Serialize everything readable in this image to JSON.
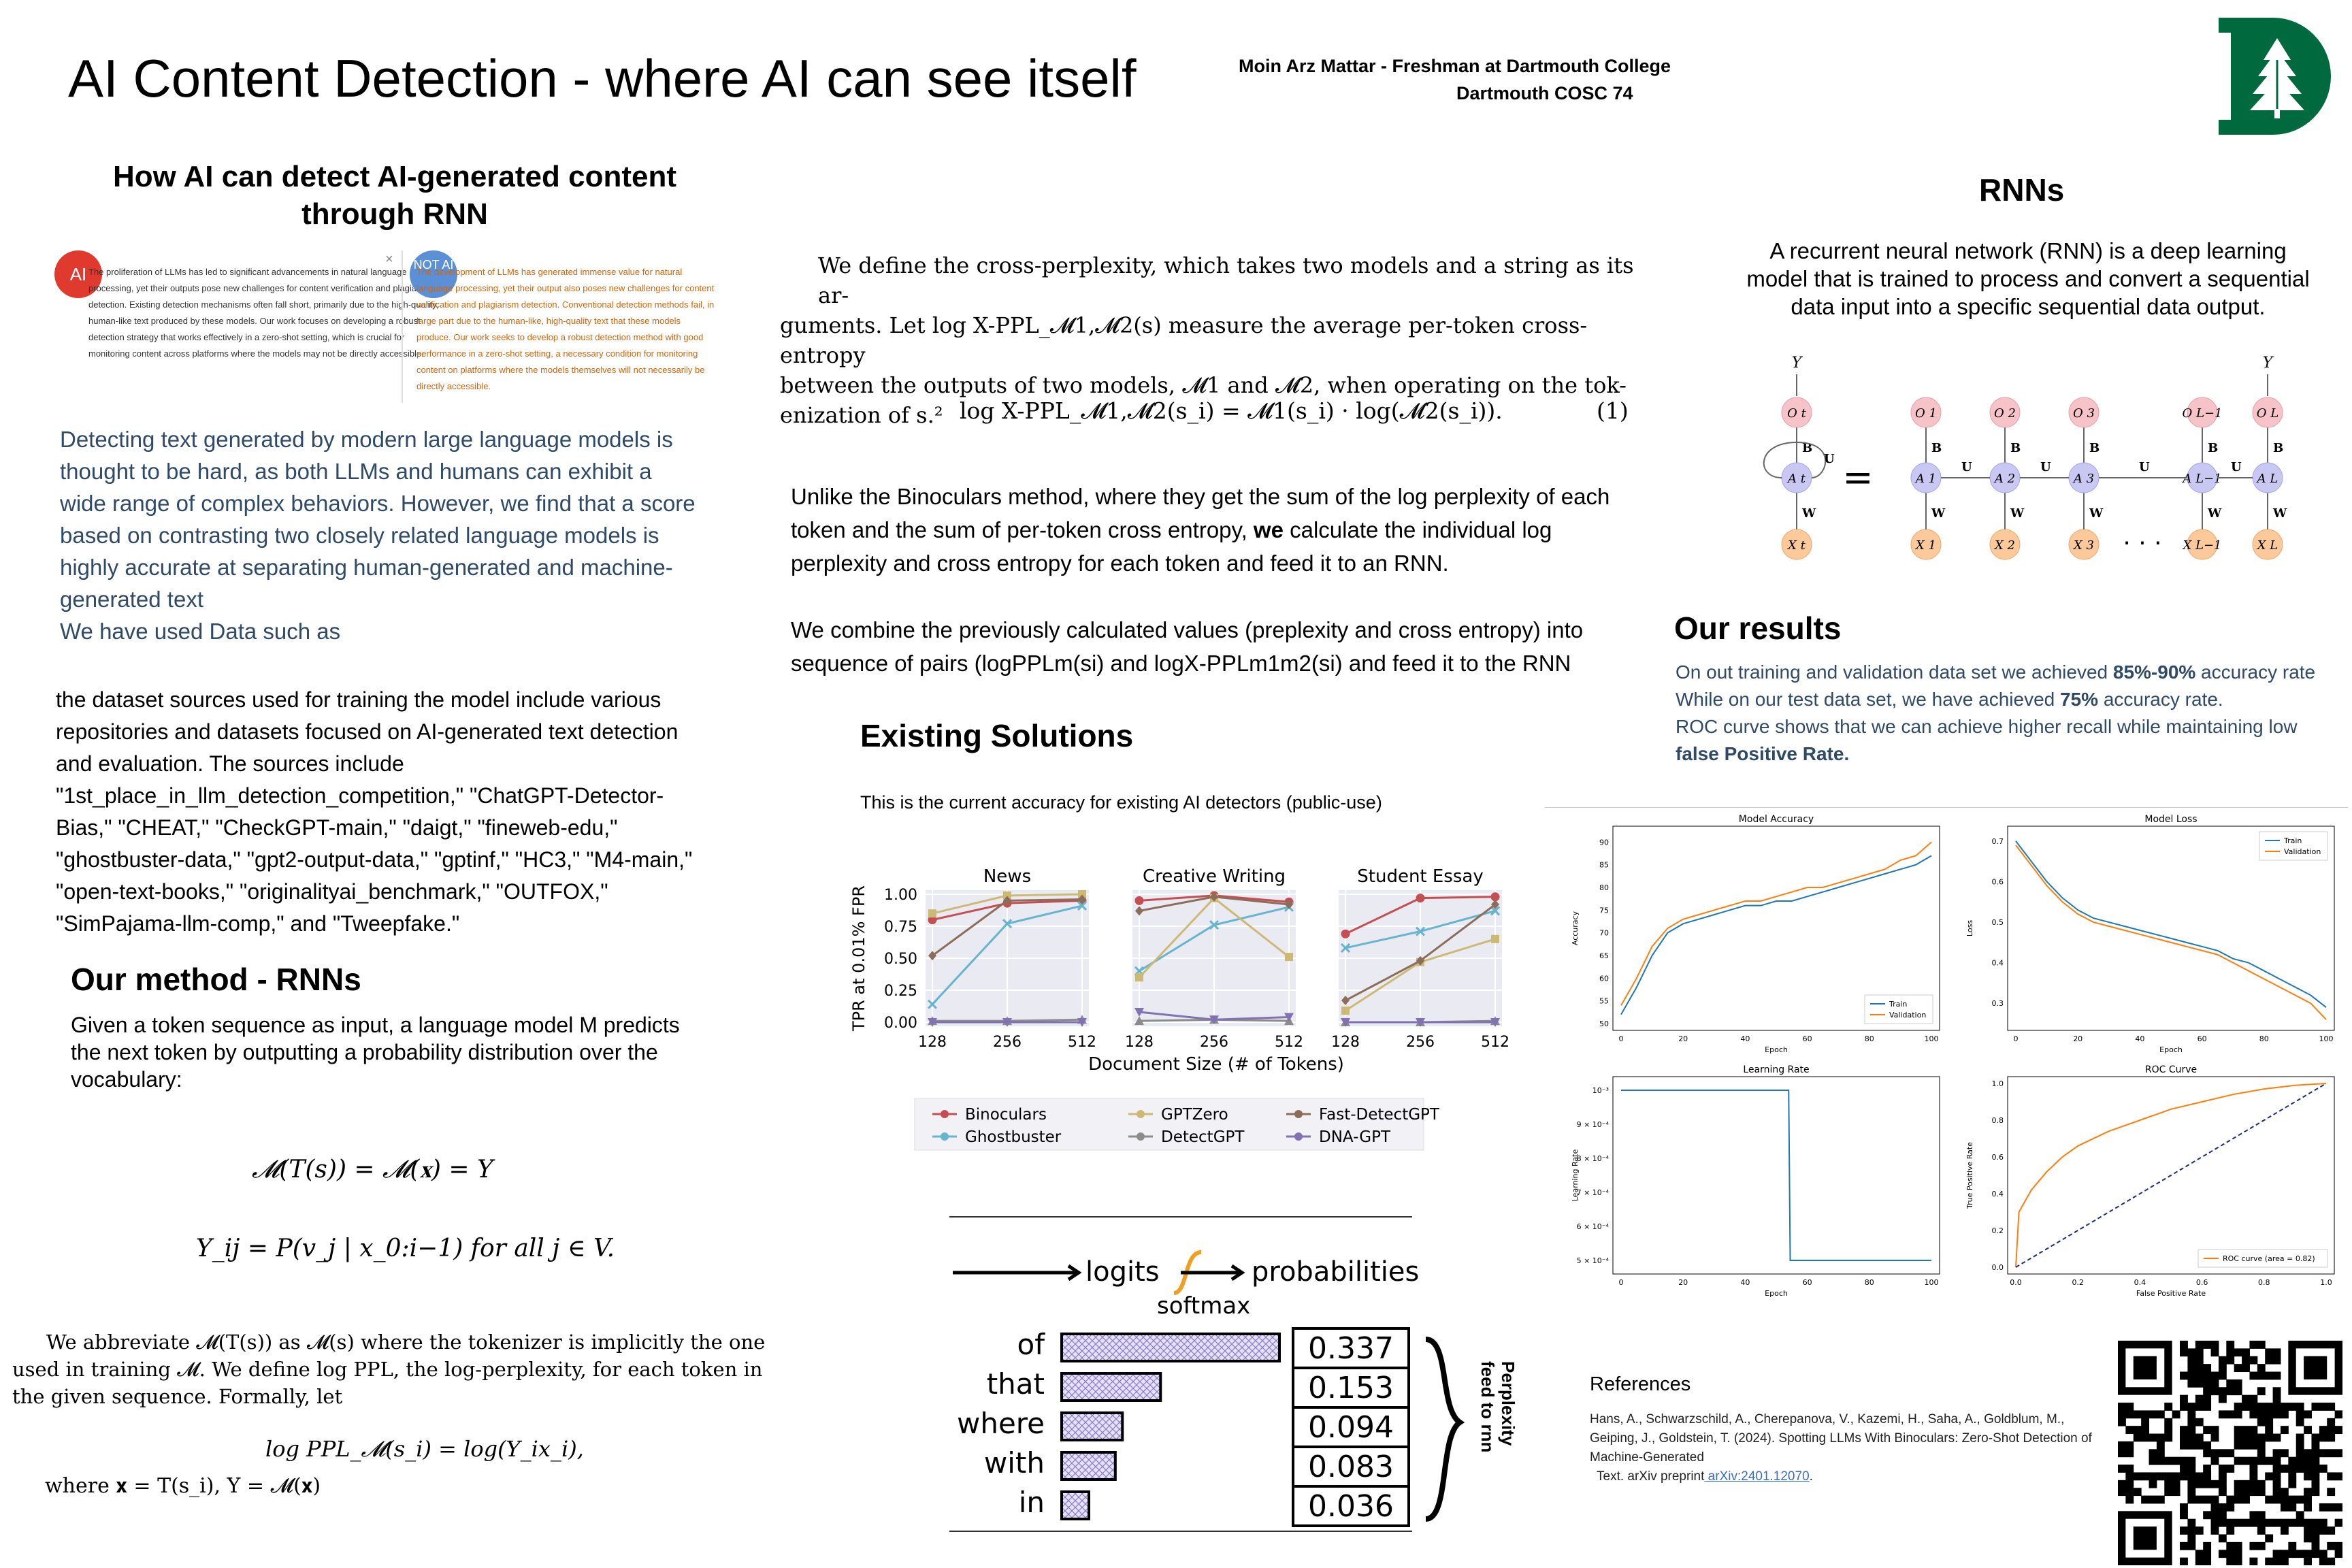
{
  "header": {
    "title": "AI Content Detection - where AI can see itself",
    "author": "Moin Arz Mattar - Freshman at Dartmouth College",
    "course": "Dartmouth COSC 74"
  },
  "left": {
    "heading": "How AI can detect AI-generated content through RNN",
    "sample": {
      "ai_badge": "AI",
      "not_ai_badge": "NOT AI",
      "close_glyph": "×",
      "ai_text": "The proliferation of LLMs has led to significant advancements in natural language processing, yet their outputs pose new challenges for content verification and plagiarism detection. Existing detection mechanisms often fall short, primarily due to the high-quality, human-like text produced by these models. Our work focuses on developing a robust detection strategy that works effectively in a zero-shot setting, which is crucial for monitoring content across platforms where the models may not be directly accessible.",
      "human_text": "The development of LLMs has generated immense value for natural language processing, yet their output also poses new challenges for content verification and plagiarism detection. Conventional detection methods fail, in large part due to the human-like, high-quality text that these models produce. Our work seeks to develop a robust detection method with good performance in a zero-shot setting, a necessary condition for monitoring content on platforms where the models themselves will not necessarily be directly accessible."
    },
    "intro_lines": [
      "Detecting text generated by modern large language models is",
      "thought to be hard, as both LLMs and humans can exhibit a",
      "wide range of complex behaviors. However, we find that a score",
      "based on contrasting two closely related language models is",
      "highly accurate at separating human-generated and machine-",
      "generated text",
      "We have used Data such as"
    ],
    "dataset_lines": [
      "the dataset sources used for training the model include various",
      "repositories and datasets focused on AI-generated text detection",
      "and evaluation. The sources include",
      "\"1st_place_in_llm_detection_competition,\" \"ChatGPT-Detector-",
      "Bias,\" \"CHEAT,\" \"CheckGPT-main,\" \"daigt,\" \"fineweb-edu,\"",
      "\"ghostbuster-data,\" \"gpt2-output-data,\" \"gptinf,\" \"HC3,\" \"M4-main,\"",
      "\"open-text-books,\" \"originalityai_benchmark,\" \"OUTFOX,\"",
      "\"SimPajama-llm-comp,\" and \"Tweepfake.\""
    ],
    "method_heading": "Our method - RNNs",
    "method_lines": [
      "Given a token sequence as input, a language model M predicts",
      "the next token by outputting a probability distribution over the",
      "vocabulary:"
    ],
    "eq1": "𝓜(T(s)) = 𝓜(𝐱) = Y",
    "eq2": "Y_ij = P(v_j | x_0:i−1) for all j ∈ V.",
    "abbrev_lines": [
      "We abbreviate 𝓜(T(s)) as 𝓜(s) where the tokenizer is implicitly the one",
      "used in training 𝓜. We define log PPL, the log-perplexity, for each token in",
      "the given sequence. Formally, let"
    ],
    "eq3": "log PPL_𝓜(s_i) = log(Y_ix_i),",
    "where_line": "where 𝐱 = T(s_i), Y = 𝓜(𝐱)"
  },
  "middle": {
    "def_lines": [
      "We define the cross-perplexity, which takes two models and a string as its ar-",
      "guments. Let log X-PPL_𝓜1,𝓜2(s) measure the average per-token cross-entropy",
      "between the outputs of two models, 𝓜1 and 𝓜2, when operating on the tok-",
      "enization of s.²"
    ],
    "eq_main": "log X-PPL_𝓜1,𝓜2(s_i) = 𝓜1(s_i) · log(𝓜2(s_i)).",
    "eq_number": "(1)",
    "binoculars_lines_a": "Unlike the Binoculars method, where they get the sum of the log perplexity of each",
    "binoculars_lines_b_pre": "token and the sum of per-token cross entropy, ",
    "binoculars_lines_b_bold": "we",
    "binoculars_lines_b_post": " calculate the individual log",
    "binoculars_lines_c": "perplexity and cross entropy for each token and feed it to an RNN.",
    "combine_lines": [
      "We combine the previously calculated values (preplexity and cross entropy) into",
      "sequence of pairs (logPPLm(si) and logX-PPLm1m2(si) and feed it to the RNN"
    ],
    "existing_heading": "Existing Solutions",
    "existing_caption": "This is the current accuracy for existing AI detectors (public-use)",
    "softmax": {
      "logits": "logits",
      "softmax": "softmax",
      "probabilities": "probabilities",
      "side_label_1": "Perplexity",
      "side_label_2": "feed to rnn",
      "rows": [
        {
          "word": "of",
          "prob": "0.337",
          "value": 0.337
        },
        {
          "word": "that",
          "prob": "0.153",
          "value": 0.153
        },
        {
          "word": "where",
          "prob": "0.094",
          "value": 0.094
        },
        {
          "word": "with",
          "prob": "0.083",
          "value": 0.083
        },
        {
          "word": "in",
          "prob": "0.036",
          "value": 0.036
        }
      ]
    }
  },
  "right": {
    "rnn_heading": "RNNs",
    "rnn_lines": [
      "A recurrent neural network (RNN) is a deep learning",
      "model that is trained to process and convert a sequential",
      "data input into a specific sequential data output."
    ],
    "rnn_diagram": {
      "y_label": "Y",
      "o_labels": [
        "O_t",
        "O_1",
        "O_2",
        "O_3",
        "O_L−1",
        "O_L"
      ],
      "a_labels": [
        "A_t",
        "A_1",
        "A_2",
        "A_3",
        "A_L−1",
        "A_L"
      ],
      "x_labels": [
        "X_t",
        "X_1",
        "X_2",
        "X_3",
        "X_L−1",
        "X_L"
      ],
      "edge_B": "B",
      "edge_U": "U",
      "edge_W": "W",
      "equals": "=",
      "dots": "· · ·"
    },
    "results_heading": "Our results",
    "results_line1_pre": "On out training and validation data set we achieved ",
    "results_line1_bold": "85%-90%",
    "results_line1_post": " accuracy rate",
    "results_line2_pre": "While on our test data set, we have achieved ",
    "results_line2_bold": "75%",
    "results_line2_post": " accuracy rate.",
    "results_line3": "ROC curve shows that we can achieve higher recall while maintaining low",
    "results_line4_bold": "false Positive Rate.",
    "references_heading": "References",
    "reference_lines": [
      "Hans, A., Schwarzschild, A., Cherepanova, V., Kazemi, H., Saha, A., Goldblum, M.,",
      "Geiping, J., Goldstein, T. (2024). Spotting LLMs With Binoculars: Zero-Shot Detection of",
      "Machine-Generated",
      "Text. arXiv preprint"
    ],
    "reference_link": " arXiv:2401.12070",
    "reference_end": "."
  },
  "chart_data": [
    {
      "type": "line",
      "panels": [
        "News",
        "Creative Writing",
        "Student Essay"
      ],
      "x": [
        128,
        256,
        512
      ],
      "x_ticks": [
        "128",
        "256",
        "512"
      ],
      "y_ticks": [
        "0.00",
        "0.25",
        "0.50",
        "0.75",
        "1.00"
      ],
      "xlabel": "Document Size (# of Tokens)",
      "ylabel": "TPR at 0.01% FPR",
      "ylim": [
        0,
        1
      ],
      "legend_position": "bottom",
      "series": [
        {
          "name": "Binoculars",
          "color": "#c44e52",
          "marker": "circle",
          "values": [
            [
              0.8,
              0.93,
              0.95
            ],
            [
              0.95,
              0.99,
              0.94
            ],
            [
              0.69,
              0.97,
              0.98
            ]
          ]
        },
        {
          "name": "Ghostbuster",
          "color": "#64b5cd",
          "marker": "x",
          "values": [
            [
              0.14,
              0.77,
              0.91
            ],
            [
              0.4,
              0.76,
              0.9
            ],
            [
              0.58,
              0.71,
              0.87
            ]
          ]
        },
        {
          "name": "GPTZero",
          "color": "#ccb974",
          "marker": "square",
          "values": [
            [
              0.85,
              0.99,
              1.0
            ],
            [
              0.35,
              0.97,
              0.51
            ],
            [
              0.09,
              0.47,
              0.65
            ]
          ]
        },
        {
          "name": "DetectGPT",
          "color": "#8c8c8c",
          "marker": "triangle",
          "values": [
            [
              0.01,
              0.01,
              0.02
            ],
            [
              0.01,
              0.02,
              0.01
            ],
            [
              0.0,
              0.0,
              0.01
            ]
          ]
        },
        {
          "name": "Fast-DetectGPT",
          "color": "#8c6d5a",
          "marker": "diamond",
          "values": [
            [
              0.52,
              0.95,
              0.96
            ],
            [
              0.87,
              0.98,
              0.92
            ],
            [
              0.17,
              0.48,
              0.92
            ]
          ]
        },
        {
          "name": "DNA-GPT",
          "color": "#8172b2",
          "marker": "tri-down",
          "values": [
            [
              0.0,
              0.0,
              0.0
            ],
            [
              0.08,
              0.02,
              0.04
            ],
            [
              0.0,
              0.0,
              0.0
            ]
          ]
        }
      ]
    },
    {
      "type": "line",
      "title": "Model Accuracy",
      "xlabel": "Epoch",
      "ylabel": "Accuracy",
      "xlim": [
        0,
        100
      ],
      "ylim": [
        50,
        92
      ],
      "x_ticks": [
        "0",
        "20",
        "40",
        "60",
        "80",
        "100"
      ],
      "y_ticks": [
        "50",
        "55",
        "60",
        "65",
        "70",
        "75",
        "80",
        "85",
        "90"
      ],
      "legend_position": "bottom-right",
      "series": [
        {
          "name": "Train",
          "color": "#1f77b4",
          "x": [
            0,
            5,
            10,
            15,
            20,
            25,
            30,
            35,
            40,
            45,
            50,
            55,
            60,
            65,
            70,
            75,
            80,
            85,
            90,
            95,
            100
          ],
          "values": [
            52,
            58,
            65,
            70,
            72,
            73,
            74,
            75,
            76,
            76,
            77,
            77,
            78,
            79,
            80,
            81,
            82,
            83,
            84,
            85,
            87
          ]
        },
        {
          "name": "Validation",
          "color": "#ff7f0e",
          "x": [
            0,
            5,
            10,
            15,
            20,
            25,
            30,
            35,
            40,
            45,
            50,
            55,
            60,
            65,
            70,
            75,
            80,
            85,
            90,
            95,
            100
          ],
          "values": [
            54,
            60,
            67,
            71,
            73,
            74,
            75,
            76,
            77,
            77,
            78,
            79,
            80,
            80,
            81,
            82,
            83,
            84,
            86,
            87,
            90
          ]
        }
      ]
    },
    {
      "type": "line",
      "title": "Model Loss",
      "xlabel": "Epoch",
      "ylabel": "Loss",
      "xlim": [
        0,
        100
      ],
      "ylim": [
        0.25,
        0.72
      ],
      "x_ticks": [
        "0",
        "20",
        "40",
        "60",
        "80",
        "100"
      ],
      "y_ticks": [
        "0.3",
        "0.4",
        "0.5",
        "0.6",
        "0.7"
      ],
      "legend_position": "top-right",
      "series": [
        {
          "name": "Train",
          "color": "#1f77b4",
          "x": [
            0,
            5,
            10,
            15,
            20,
            25,
            30,
            35,
            40,
            45,
            50,
            55,
            60,
            65,
            70,
            75,
            80,
            85,
            90,
            95,
            100
          ],
          "values": [
            0.7,
            0.65,
            0.6,
            0.56,
            0.53,
            0.51,
            0.5,
            0.49,
            0.48,
            0.47,
            0.46,
            0.45,
            0.44,
            0.43,
            0.41,
            0.4,
            0.38,
            0.36,
            0.34,
            0.32,
            0.29
          ]
        },
        {
          "name": "Validation",
          "color": "#ff7f0e",
          "x": [
            0,
            5,
            10,
            15,
            20,
            25,
            30,
            35,
            40,
            45,
            50,
            55,
            60,
            65,
            70,
            75,
            80,
            85,
            90,
            95,
            100
          ],
          "values": [
            0.69,
            0.64,
            0.59,
            0.55,
            0.52,
            0.5,
            0.49,
            0.48,
            0.47,
            0.46,
            0.45,
            0.44,
            0.43,
            0.42,
            0.4,
            0.38,
            0.36,
            0.34,
            0.32,
            0.3,
            0.26
          ]
        }
      ]
    },
    {
      "type": "line",
      "title": "Learning Rate",
      "xlabel": "Epoch",
      "ylabel": "Learning Rate",
      "xlim": [
        0,
        100
      ],
      "ylim": [
        0.00048,
        0.00102
      ],
      "x_ticks": [
        "0",
        "20",
        "40",
        "60",
        "80",
        "100"
      ],
      "y_ticks": [
        "5 × 10⁻⁴",
        "6 × 10⁻⁴",
        "7 × 10⁻⁴",
        "8 × 10⁻⁴",
        "9 × 10⁻⁴",
        "10⁻³"
      ],
      "y_tick_values": [
        0.0005,
        0.0006,
        0.0007,
        0.0008,
        0.0009,
        0.001
      ],
      "series": [
        {
          "name": "",
          "color": "#1f77b4",
          "x": [
            0,
            54,
            54.5,
            100
          ],
          "values": [
            0.001,
            0.001,
            0.0005,
            0.0005
          ]
        }
      ]
    },
    {
      "type": "line",
      "title": "ROC Curve",
      "xlabel": "False Positive Rate",
      "ylabel": "True Positive Rate",
      "xlim": [
        0,
        1
      ],
      "ylim": [
        0,
        1
      ],
      "x_ticks": [
        "0.0",
        "0.2",
        "0.4",
        "0.6",
        "0.8",
        "1.0"
      ],
      "y_ticks": [
        "0.0",
        "0.2",
        "0.4",
        "0.6",
        "0.8",
        "1.0"
      ],
      "legend_position": "bottom-right",
      "series": [
        {
          "name": "ROC curve (area = 0.82)",
          "color": "#ff7f0e",
          "x": [
            0,
            0.01,
            0.05,
            0.1,
            0.15,
            0.2,
            0.3,
            0.4,
            0.5,
            0.6,
            0.7,
            0.8,
            0.9,
            1.0
          ],
          "values": [
            0,
            0.3,
            0.42,
            0.52,
            0.6,
            0.66,
            0.74,
            0.8,
            0.86,
            0.9,
            0.94,
            0.97,
            0.99,
            1.0
          ]
        },
        {
          "name": "",
          "color": "#1f2b7a",
          "dashed": true,
          "x": [
            0,
            1
          ],
          "values": [
            0,
            1
          ]
        }
      ]
    }
  ]
}
